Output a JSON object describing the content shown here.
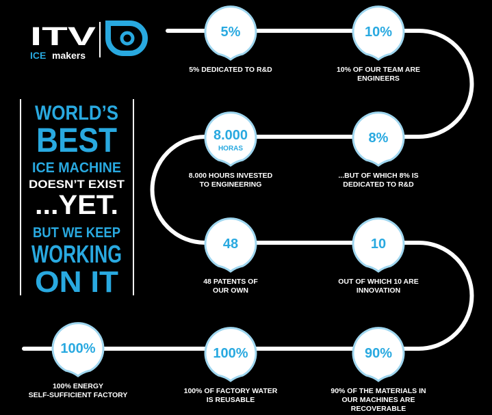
{
  "logo": {
    "brand": "ITV",
    "sub_highlight": "ICE",
    "sub": "makers"
  },
  "slogan": {
    "lines": [
      "WORLD’S",
      "BEST",
      "ICE MACHINE",
      "DOESN’T EXIST",
      "...YET.",
      "BUT WE KEEP",
      "WORKING",
      "ON IT"
    ]
  },
  "milestones": [
    {
      "value": "5%",
      "caption": [
        "5% DEDICATED TO R&D"
      ]
    },
    {
      "value": "10%",
      "caption": [
        "10% OF OUR TEAM ARE",
        "ENGINEERS"
      ]
    },
    {
      "value": "8.000",
      "unit": "HORAS",
      "caption": [
        "8.000 HOURS INVESTED",
        "TO ENGINEERING"
      ]
    },
    {
      "value": "8%",
      "caption": [
        "...BUT OF WHICH 8% IS",
        "DEDICATED TO R&D"
      ]
    },
    {
      "value": "48",
      "caption": [
        "48 PATENTS OF",
        "OUR OWN"
      ]
    },
    {
      "value": "10",
      "caption": [
        "OUT OF WHICH 10 ARE",
        "INNOVATION"
      ]
    },
    {
      "value": "90%",
      "caption": [
        "90% OF THE MATERIALS IN",
        "OUR MACHINES ARE",
        "RECOVERABLE"
      ]
    },
    {
      "value": "100%",
      "caption": [
        "100% OF FACTORY WATER",
        "IS REUSABLE"
      ]
    },
    {
      "value": "100%",
      "caption": [
        "100% ENERGY",
        "SELF-SUFFICIENT FACTORY"
      ]
    }
  ]
}
